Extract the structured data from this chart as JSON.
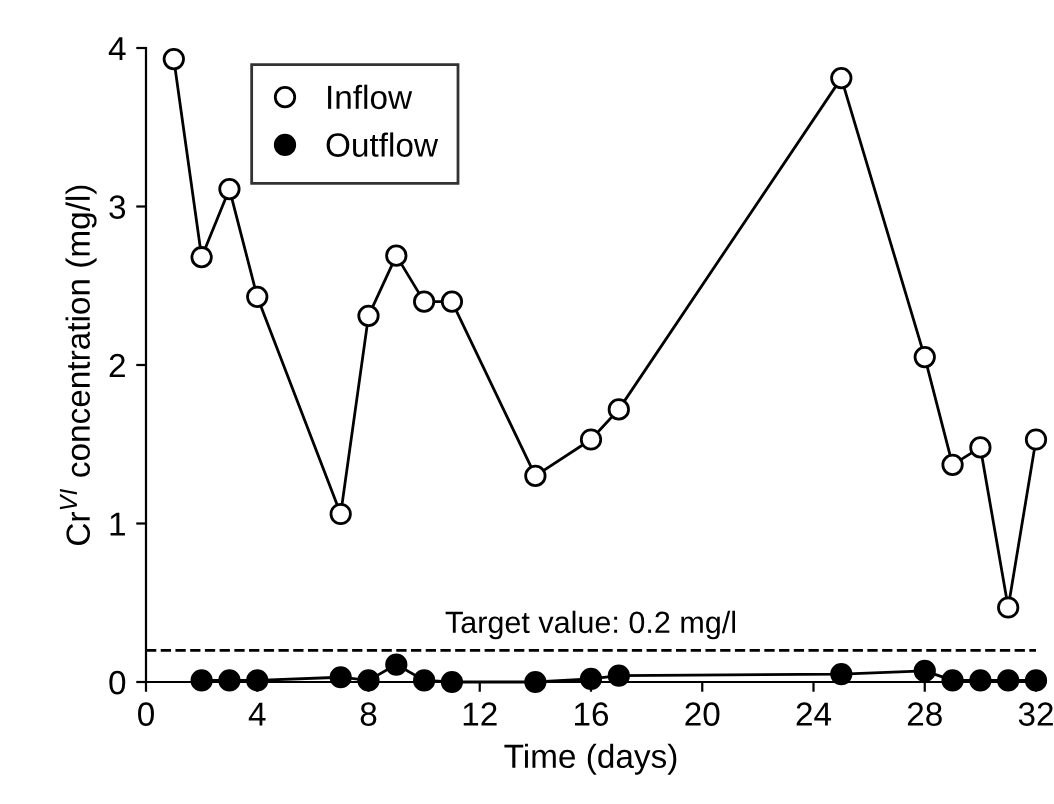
{
  "chart_data": {
    "type": "line",
    "xlabel": "Time (days)",
    "ylabel": "Cr$^{VI}$ concentration (mg/l)",
    "xlim": [
      0,
      32
    ],
    "ylim": [
      0,
      4
    ],
    "xticks": [
      0,
      4,
      8,
      12,
      16,
      20,
      24,
      28,
      32
    ],
    "yticks": [
      0,
      1,
      2,
      3,
      4
    ],
    "grid": false,
    "legend": "top left",
    "marker": "circle",
    "line_style": "solid",
    "series": [
      {
        "name": "Inflow",
        "color": "#000000",
        "x": [
          1,
          2,
          3,
          4,
          7,
          8,
          9,
          10,
          11,
          14,
          16,
          17,
          25,
          28,
          29,
          30,
          31,
          32
        ],
        "values": [
          3.93,
          2.68,
          3.11,
          2.43,
          1.06,
          2.31,
          2.69,
          2.4,
          2.4,
          1.3,
          1.53,
          1.72,
          3.81,
          2.05,
          1.37,
          1.48,
          0.47,
          1.53
        ]
      },
      {
        "name": "Outflow",
        "color": "#000000",
        "x": [
          2,
          3,
          4,
          7,
          8,
          9,
          10,
          11,
          14,
          16,
          17,
          25,
          28,
          29,
          30,
          31,
          32
        ],
        "values": [
          0.01,
          0.01,
          0.01,
          0.03,
          0.01,
          0.11,
          0.01,
          0,
          0,
          0.02,
          0.04,
          0.05,
          0.07,
          0.01,
          0.01,
          0.01,
          0.01
        ]
      }
    ],
    "ref_lines": [
      {
        "axis": "y",
        "value": 0.2,
        "label": "Target value: 0.2 mg/l",
        "line_style": "dashed",
        "color": "#000000"
      }
    ]
  }
}
